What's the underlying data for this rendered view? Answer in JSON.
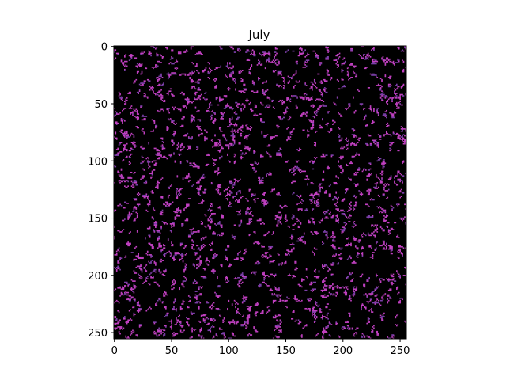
{
  "chart_data": {
    "type": "heatmap",
    "title": "July",
    "xlabel": "",
    "ylabel": "",
    "grid_size": [
      256,
      256
    ],
    "xlim": [
      0,
      256
    ],
    "ylim": [
      256,
      0
    ],
    "y_axis_inverted": true,
    "x_ticks": [
      0,
      50,
      100,
      150,
      200,
      250
    ],
    "y_ticks": [
      0,
      50,
      100,
      150,
      200,
      250
    ],
    "values_description": "binary cellular pattern (sparse small clusters)",
    "cell_density": 0.14,
    "grid": false,
    "legend": "none",
    "colors": {
      "background": "#000000",
      "cell": "#c040c0",
      "cell_secondary": "#7a3fa8"
    }
  }
}
